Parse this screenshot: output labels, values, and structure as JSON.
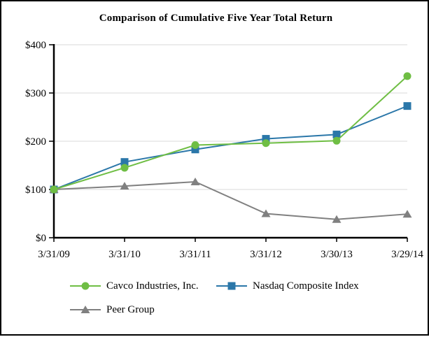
{
  "chart_data": {
    "type": "line",
    "title": "Comparison of Cumulative Five Year Total Return",
    "xlabel": "",
    "ylabel": "",
    "categories": [
      "3/31/09",
      "3/31/10",
      "3/31/11",
      "3/31/12",
      "3/30/13",
      "3/29/14"
    ],
    "series": [
      {
        "name": "Cavco Industries, Inc.",
        "marker": "circle",
        "color": "#6FBE44",
        "values": [
          100,
          145,
          192,
          196,
          201,
          335
        ]
      },
      {
        "name": "Nasdaq Composite Index",
        "marker": "square",
        "color": "#2B77A9",
        "values": [
          100,
          157,
          183,
          205,
          214,
          273
        ]
      },
      {
        "name": "Peer Group",
        "marker": "triangle",
        "color": "#808080",
        "values": [
          100,
          107,
          116,
          50,
          38,
          49
        ]
      }
    ],
    "ylim": [
      0,
      400
    ],
    "ytick_step": 100,
    "ytick_labels": [
      "$0",
      "$100",
      "$200",
      "$300",
      "$400"
    ],
    "grid": true,
    "legend_position": "bottom",
    "colors": {
      "gridline": "#D9D9D9",
      "axis": "#000000",
      "text": "#000000",
      "background": "#FFFFFF",
      "border": "#000000"
    }
  }
}
